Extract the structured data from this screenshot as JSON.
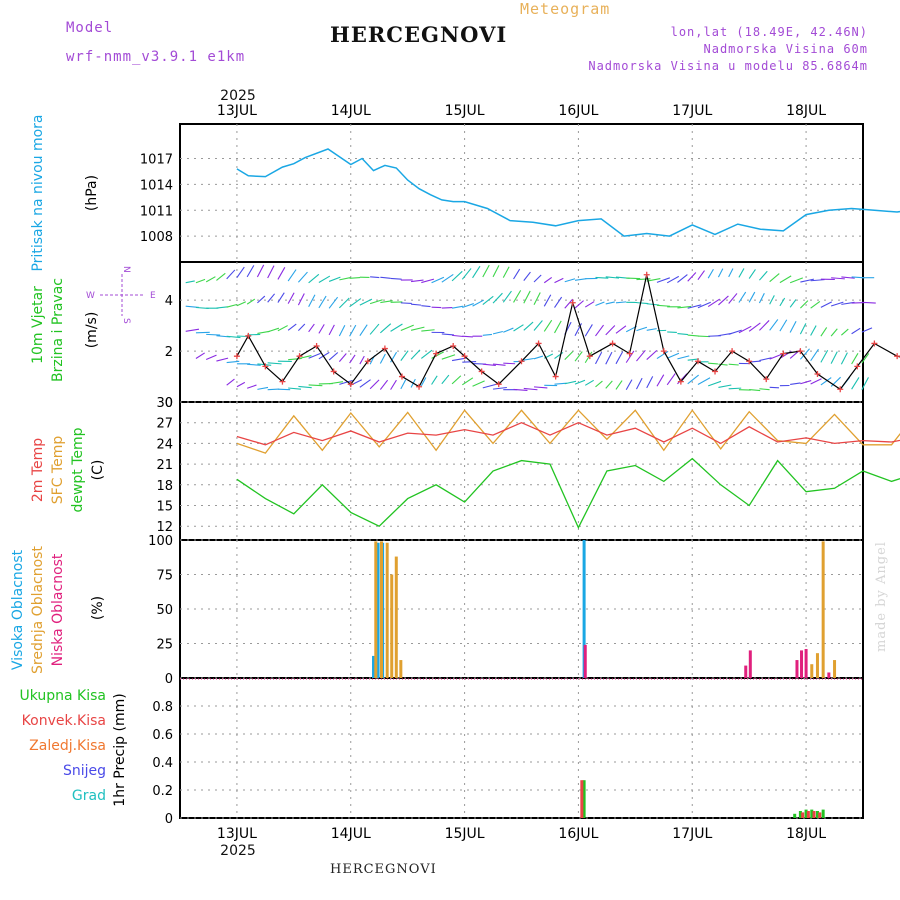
{
  "header": {
    "model_label": "Model",
    "model_name": "wrf-nmm_v3.9.1 e1km",
    "station": "HERCEGNOVI",
    "title": "Meteogram",
    "lonlat": "lon,lat (18.49E, 42.46N)",
    "elevation": "Nadmorska Visina 60m",
    "model_elevation": "Nadmorska Visina u modelu 85.6864m",
    "footer_station": "HERCEGNOVI",
    "made_by": "made by Angel",
    "year": "2025"
  },
  "colors": {
    "pressure": "#1aa7e4",
    "t2m": "#e84545",
    "sfc": "#e0a030",
    "dew": "#22c322",
    "high": "#1aa7e4",
    "mid": "#e0a030",
    "low": "#e0207d",
    "conv": "#e84545",
    "total": "#22c322"
  },
  "chart_data": [
    {
      "type": "line",
      "id": "pressure",
      "ylabel": [
        "Pritisak na nivou mora",
        "(hPa)"
      ],
      "ylim": [
        1005,
        1021
      ],
      "yticks": [
        1008,
        1011,
        1014,
        1017
      ],
      "x_day_ticks": [
        "13JUL",
        "14JUL",
        "15JUL",
        "16JUL",
        "17JUL",
        "18JUL"
      ],
      "x": [
        0.0,
        0.1,
        0.25,
        0.4,
        0.5,
        0.6,
        0.8,
        1.0,
        1.1,
        1.2,
        1.3,
        1.4,
        1.5,
        1.6,
        1.7,
        1.8,
        1.9,
        2.0,
        2.2,
        2.4,
        2.6,
        2.8,
        3.0,
        3.2,
        3.4,
        3.6,
        3.8,
        4.0,
        4.2,
        4.4,
        4.6,
        4.8,
        5.0,
        5.2,
        5.4,
        5.6,
        5.8,
        6.0
      ],
      "series": [
        {
          "name": "Pritisak na nivou mora",
          "values": [
            1015.8,
            1015.0,
            1014.9,
            1016.0,
            1016.4,
            1017.1,
            1018.1,
            1016.3,
            1017.0,
            1015.6,
            1016.2,
            1015.9,
            1014.5,
            1013.5,
            1012.8,
            1012.2,
            1012.0,
            1012.0,
            1011.2,
            1009.8,
            1009.6,
            1009.2,
            1009.8,
            1010.0,
            1008.0,
            1008.3,
            1008.0,
            1009.3,
            1008.2,
            1009.4,
            1008.8,
            1008.6,
            1010.5,
            1011.0,
            1011.2,
            1011.0,
            1010.8,
            1011.2
          ]
        }
      ]
    },
    {
      "type": "line",
      "id": "wind",
      "ylabel": [
        "10m Vjetar",
        "Brzina i Pravac",
        "(m/s)"
      ],
      "compass": {
        "n": "N",
        "s": "S",
        "e": "E",
        "w": "W"
      },
      "ylim": [
        0,
        5.5
      ],
      "yticks": [
        0,
        2,
        4
      ],
      "x": [
        0.0,
        0.1,
        0.25,
        0.4,
        0.55,
        0.7,
        0.85,
        1.0,
        1.15,
        1.3,
        1.45,
        1.6,
        1.75,
        1.9,
        2.0,
        2.15,
        2.3,
        2.5,
        2.65,
        2.8,
        2.95,
        3.1,
        3.3,
        3.45,
        3.6,
        3.75,
        3.9,
        4.05,
        4.2,
        4.35,
        4.5,
        4.65,
        4.8,
        4.95,
        5.1,
        5.3,
        5.45,
        5.6,
        5.8,
        6.0
      ],
      "series": [
        {
          "name": "10m Vjetar",
          "values": [
            1.8,
            2.6,
            1.4,
            0.8,
            1.8,
            2.2,
            1.2,
            0.7,
            1.6,
            2.1,
            1.0,
            0.6,
            1.9,
            2.2,
            1.8,
            1.2,
            0.7,
            1.6,
            2.3,
            1.0,
            3.9,
            1.8,
            2.3,
            1.9,
            5.0,
            2.0,
            0.8,
            1.6,
            1.2,
            2.0,
            1.6,
            0.9,
            1.9,
            2.0,
            1.1,
            0.5,
            1.4,
            2.3,
            1.8,
            1.6
          ]
        }
      ]
    },
    {
      "type": "line",
      "id": "temperature",
      "ylabel": [
        "2m Temp",
        "SFC Temp",
        "dewpt Temp",
        "(C)"
      ],
      "ylim": [
        10,
        30
      ],
      "yticks": [
        12,
        15,
        18,
        21,
        24,
        27,
        30
      ],
      "x": [
        0.0,
        0.25,
        0.5,
        0.75,
        1.0,
        1.25,
        1.5,
        1.75,
        2.0,
        2.25,
        2.5,
        2.75,
        3.0,
        3.25,
        3.5,
        3.75,
        4.0,
        4.25,
        4.5,
        4.75,
        5.0,
        5.25,
        5.5,
        5.75,
        6.0
      ],
      "series": [
        {
          "name": "2m Temp",
          "values": [
            25.0,
            23.8,
            25.6,
            24.4,
            25.8,
            24.2,
            25.5,
            25.2,
            26.0,
            25.2,
            27.0,
            25.2,
            27.0,
            25.2,
            26.2,
            24.2,
            26.2,
            24.0,
            26.4,
            24.2,
            24.8,
            24.0,
            24.4,
            24.2,
            25.0
          ]
        },
        {
          "name": "SFC Temp",
          "values": [
            24.0,
            22.6,
            28.0,
            23.0,
            28.4,
            23.5,
            28.5,
            23.0,
            28.8,
            24.0,
            28.8,
            24.0,
            28.8,
            24.6,
            28.8,
            23.0,
            28.8,
            23.2,
            28.6,
            24.4,
            24.0,
            28.2,
            23.8,
            23.8,
            29.0
          ]
        },
        {
          "name": "dewpt Temp",
          "values": [
            18.8,
            16.0,
            13.8,
            18.0,
            14.0,
            12.0,
            16.0,
            18.0,
            15.5,
            20.0,
            21.5,
            21.0,
            11.8,
            20.0,
            20.8,
            18.5,
            21.8,
            18.0,
            15.0,
            21.5,
            17.0,
            17.5,
            20.0,
            18.5,
            19.8
          ]
        }
      ]
    },
    {
      "type": "bar",
      "id": "cloud",
      "ylabel": [
        "Visoka Oblacnost",
        "Srednja Oblacnost",
        "Niska Oblacnost",
        "(%)"
      ],
      "ylim": [
        0,
        100
      ],
      "yticks": [
        0,
        25,
        50,
        75,
        100
      ],
      "series": [
        {
          "name": "Visoka Oblacnost",
          "points": [
            [
              1.2,
              16
            ],
            [
              1.24,
              98
            ],
            [
              1.28,
              98
            ],
            [
              3.05,
              100
            ]
          ]
        },
        {
          "name": "Srednja Oblacnost",
          "points": [
            [
              1.22,
              99
            ],
            [
              1.27,
              99
            ],
            [
              1.32,
              98
            ],
            [
              1.36,
              75
            ],
            [
              1.4,
              88
            ],
            [
              1.44,
              13
            ],
            [
              5.15,
              99
            ],
            [
              5.05,
              10
            ],
            [
              5.1,
              18
            ],
            [
              5.25,
              13
            ]
          ]
        },
        {
          "name": "Niska Oblacnost",
          "points": [
            [
              3.06,
              24
            ],
            [
              4.47,
              9
            ],
            [
              4.51,
              20
            ],
            [
              4.92,
              13
            ],
            [
              4.96,
              20
            ],
            [
              5.0,
              21
            ],
            [
              5.2,
              4
            ]
          ]
        }
      ]
    },
    {
      "type": "bar",
      "id": "precip",
      "ylabel": [
        "1hr Precip (mm)"
      ],
      "legend": [
        "Ukupna Kisa",
        "Konvek.Kisa",
        "Zaledj.Kisa",
        "Snijeg",
        "Grad"
      ],
      "ylim": [
        0,
        1.0
      ],
      "yticks": [
        0,
        0.2,
        0.4,
        0.6,
        0.8
      ],
      "x_day_ticks": [
        "13JUL",
        "14JUL",
        "15JUL",
        "16JUL",
        "17JUL",
        "18JUL"
      ],
      "series": [
        {
          "name": "Ukupna Kisa",
          "points": [
            [
              3.05,
              0.27
            ],
            [
              4.95,
              0.05
            ],
            [
              5.0,
              0.06
            ],
            [
              5.05,
              0.06
            ],
            [
              5.1,
              0.05
            ],
            [
              5.15,
              0.06
            ],
            [
              4.9,
              0.03
            ]
          ]
        },
        {
          "name": "Konvek.Kisa",
          "points": [
            [
              3.03,
              0.27
            ],
            [
              4.97,
              0.04
            ],
            [
              5.02,
              0.05
            ],
            [
              5.07,
              0.05
            ],
            [
              5.12,
              0.04
            ]
          ]
        }
      ]
    }
  ]
}
